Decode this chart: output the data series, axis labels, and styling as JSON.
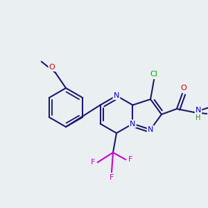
{
  "background_color": "#eaeff2",
  "bond_color": "#1a1a6e",
  "atom_colors": {
    "N": "#0000cc",
    "O": "#cc0000",
    "F": "#cc00cc",
    "Cl": "#00aa00",
    "H": "#228822",
    "C": "#1a1a6e"
  },
  "figsize": [
    3.0,
    3.0
  ],
  "dpi": 100
}
